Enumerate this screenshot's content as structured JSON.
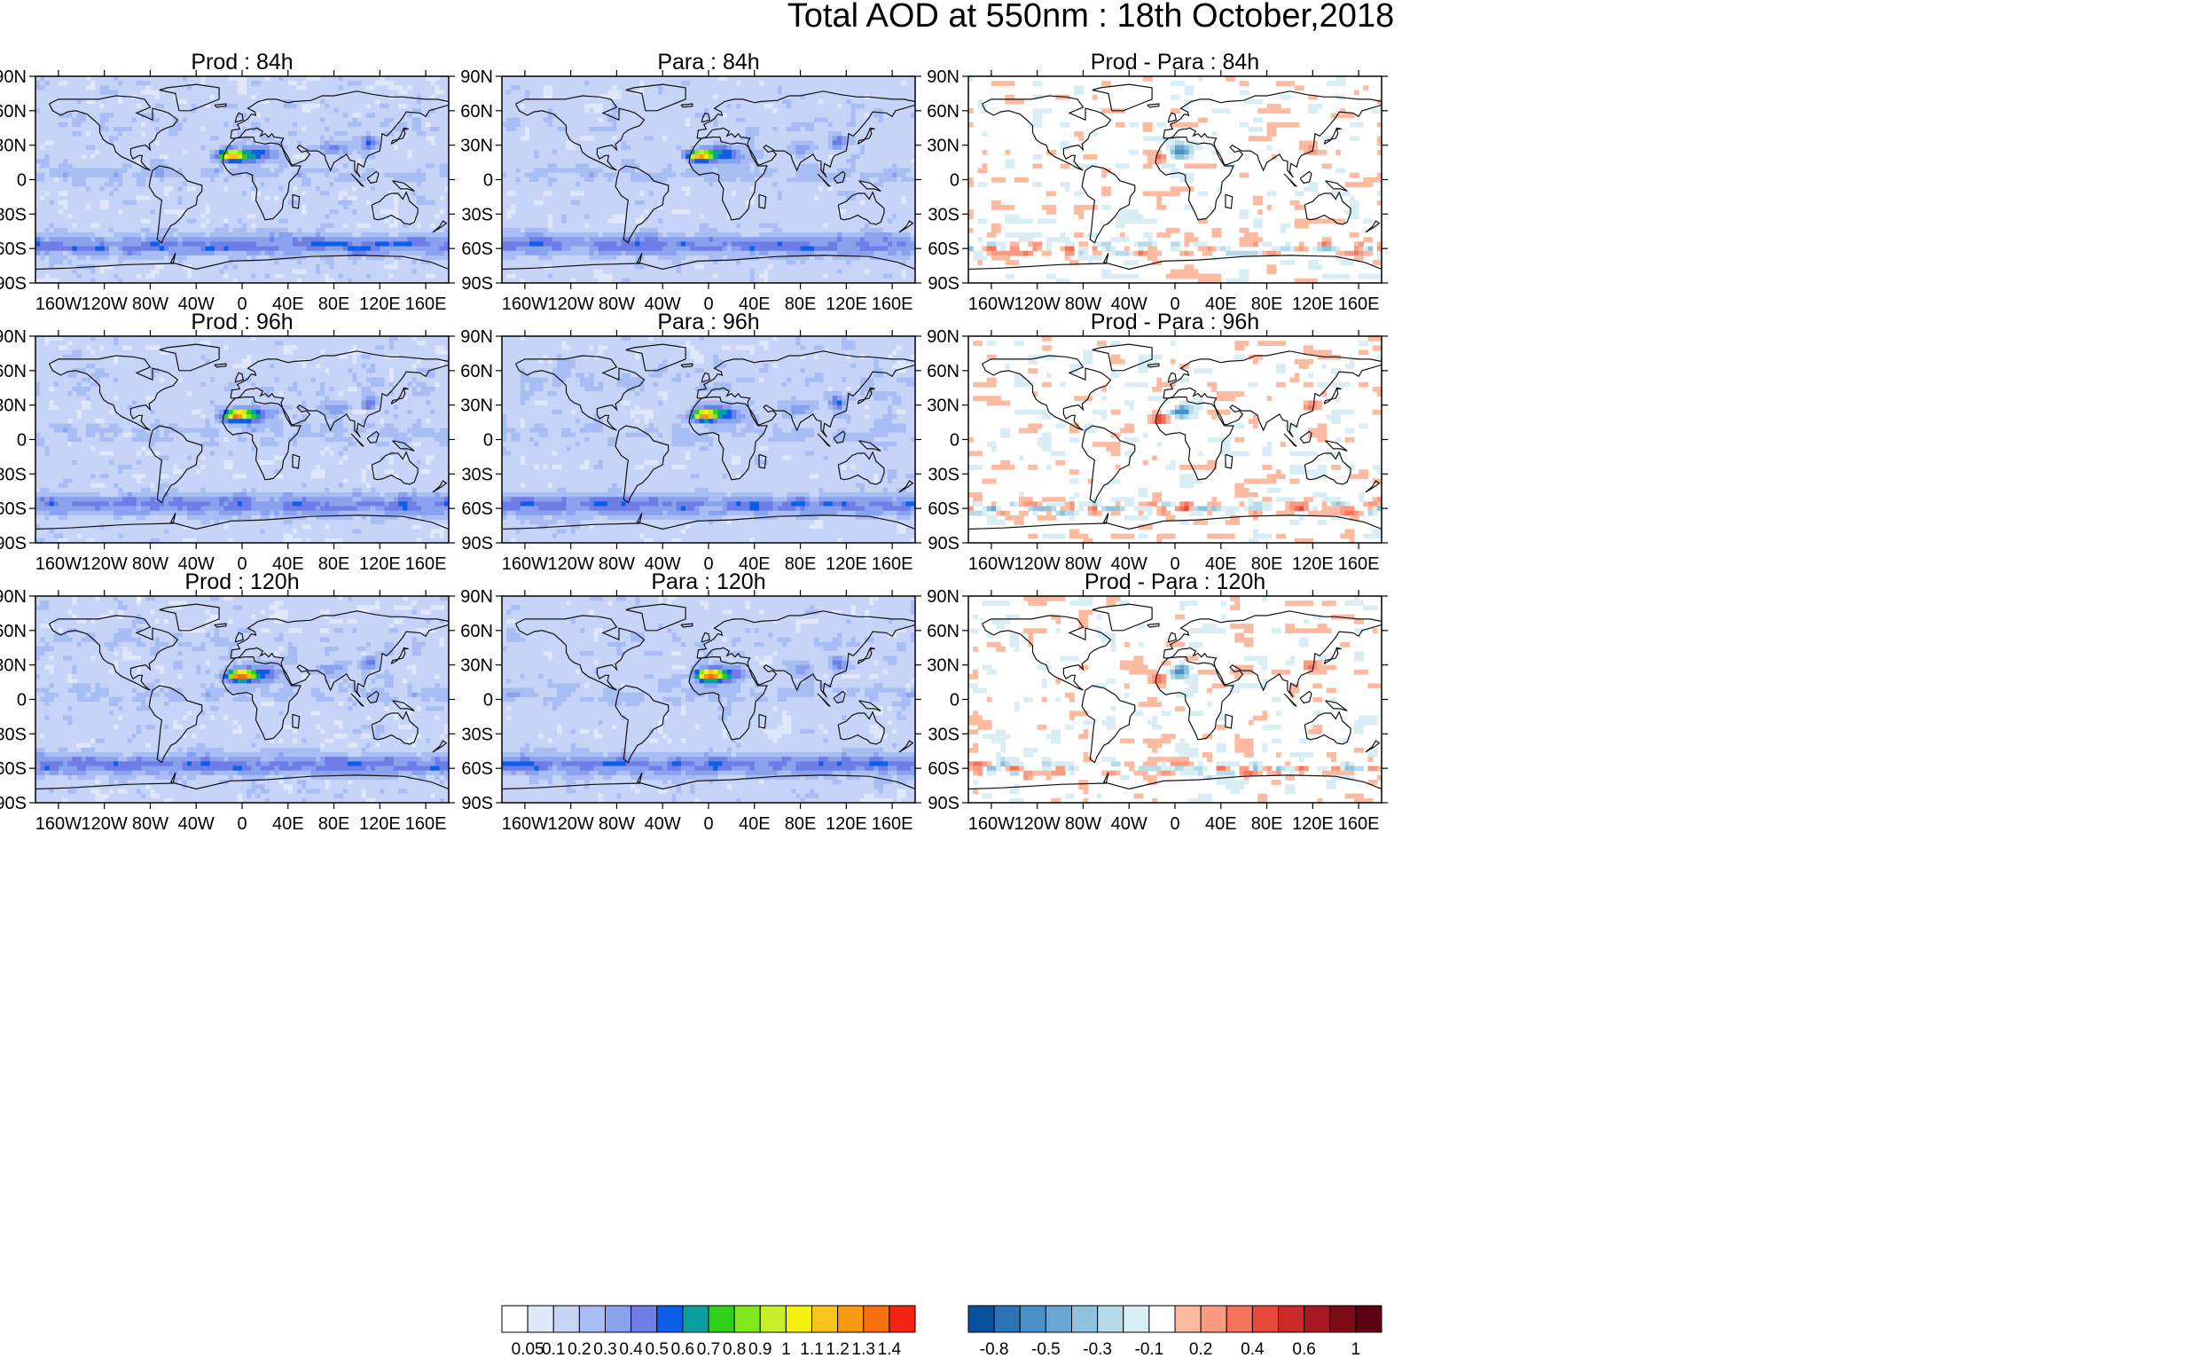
{
  "figure_title": "Total AOD at 550nm : 18th October,2018",
  "colors": {
    "land_outline": "#111111",
    "frame": "#000000",
    "aod_scale": [
      "#ffffff",
      "#dfe7fb",
      "#c6d4f7",
      "#a8bdf3",
      "#8aa2ee",
      "#6f7de7",
      "#0a5ee8",
      "#0a9ea0",
      "#2fd01a",
      "#7fe81a",
      "#c8f02a",
      "#f6f10e",
      "#fac21a",
      "#f99a10",
      "#f7700e",
      "#f52410"
    ],
    "diff_scale": [
      "#08519c",
      "#2b73b6",
      "#4a90c8",
      "#6aa6d4",
      "#8fc2de",
      "#b5dbea",
      "#d9edf5",
      "#ffffff",
      "#fcbba1",
      "#f99a80",
      "#f5735a",
      "#e8493a",
      "#cc2a29",
      "#a81822",
      "#7e0b18",
      "#5c0012"
    ]
  },
  "chart_data": [
    {
      "type": "heatmap",
      "title": "Prod : 84h",
      "variable": "Total AOD at 550nm",
      "lead_time": "84h",
      "xlabel": "",
      "ylabel": "",
      "xticks": [
        "160W",
        "120W",
        "80W",
        "40W",
        "0",
        "40E",
        "80E",
        "120E",
        "160E"
      ],
      "yticks": [
        "90N",
        "60N",
        "30N",
        "0",
        "30S",
        "60S",
        "90S"
      ],
      "xlim": [
        -180,
        180
      ],
      "ylim": [
        -90,
        90
      ],
      "max_region": "Saharan dust plume, AOD 1.0-1.2"
    },
    {
      "type": "heatmap",
      "title": "Para : 84h",
      "variable": "Total AOD at 550nm",
      "lead_time": "84h",
      "xlabel": "",
      "ylabel": "",
      "xticks": [
        "160W",
        "120W",
        "80W",
        "40W",
        "0",
        "40E",
        "80E",
        "120E",
        "160E"
      ],
      "yticks": [
        "90N",
        "60N",
        "30N",
        "0",
        "30S",
        "60S",
        "90S"
      ],
      "xlim": [
        -180,
        180
      ],
      "ylim": [
        -90,
        90
      ],
      "max_region": "Saharan dust plume, AOD 1.0-1.2"
    },
    {
      "type": "heatmap",
      "title": "Prod - Para : 84h",
      "variable": "AOD difference",
      "lead_time": "84h",
      "xlabel": "",
      "ylabel": "",
      "xticks": [
        "160W",
        "120W",
        "80W",
        "40W",
        "0",
        "40E",
        "80E",
        "120E",
        "160E"
      ],
      "yticks": [
        "90N",
        "60N",
        "30N",
        "0",
        "30S",
        "60S",
        "90S"
      ],
      "xlim": [
        -180,
        180
      ],
      "ylim": [
        -90,
        90
      ]
    },
    {
      "type": "heatmap",
      "title": "Prod : 96h",
      "variable": "Total AOD at 550nm",
      "lead_time": "96h",
      "xlabel": "",
      "ylabel": "",
      "xticks": [
        "160W",
        "120W",
        "80W",
        "40W",
        "0",
        "40E",
        "80E",
        "120E",
        "160E"
      ],
      "yticks": [
        "90N",
        "60N",
        "30N",
        "0",
        "30S",
        "60S",
        "90S"
      ],
      "xlim": [
        -180,
        180
      ],
      "ylim": [
        -90,
        90
      ]
    },
    {
      "type": "heatmap",
      "title": "Para : 96h",
      "variable": "Total AOD at 550nm",
      "lead_time": "96h",
      "xlabel": "",
      "ylabel": "",
      "xticks": [
        "160W",
        "120W",
        "80W",
        "40W",
        "0",
        "40E",
        "80E",
        "120E",
        "160E"
      ],
      "yticks": [
        "90N",
        "60N",
        "30N",
        "0",
        "30S",
        "60S",
        "90S"
      ],
      "xlim": [
        -180,
        180
      ],
      "ylim": [
        -90,
        90
      ]
    },
    {
      "type": "heatmap",
      "title": "Prod - Para : 96h",
      "variable": "AOD difference",
      "lead_time": "96h",
      "xlabel": "",
      "ylabel": "",
      "xticks": [
        "160W",
        "120W",
        "80W",
        "40W",
        "0",
        "40E",
        "80E",
        "120E",
        "160E"
      ],
      "yticks": [
        "90N",
        "60N",
        "30N",
        "0",
        "30S",
        "60S",
        "90S"
      ],
      "xlim": [
        -180,
        180
      ],
      "ylim": [
        -90,
        90
      ]
    },
    {
      "type": "heatmap",
      "title": "Prod : 120h",
      "variable": "Total AOD at 550nm",
      "lead_time": "120h",
      "xlabel": "",
      "ylabel": "",
      "xticks": [
        "160W",
        "120W",
        "80W",
        "40W",
        "0",
        "40E",
        "80E",
        "120E",
        "160E"
      ],
      "yticks": [
        "90N",
        "60N",
        "30N",
        "0",
        "30S",
        "60S",
        "90S"
      ],
      "xlim": [
        -180,
        180
      ],
      "ylim": [
        -90,
        90
      ]
    },
    {
      "type": "heatmap",
      "title": "Para : 120h",
      "variable": "Total AOD at 550nm",
      "lead_time": "120h",
      "xlabel": "",
      "ylabel": "",
      "xticks": [
        "160W",
        "120W",
        "80W",
        "40W",
        "0",
        "40E",
        "80E",
        "120E",
        "160E"
      ],
      "yticks": [
        "90N",
        "60N",
        "30N",
        "0",
        "30S",
        "60S",
        "90S"
      ],
      "xlim": [
        -180,
        180
      ],
      "ylim": [
        -90,
        90
      ]
    },
    {
      "type": "heatmap",
      "title": "Prod - Para : 120h",
      "variable": "AOD difference",
      "lead_time": "120h",
      "xlabel": "",
      "ylabel": "",
      "xticks": [
        "160W",
        "120W",
        "80W",
        "40W",
        "0",
        "40E",
        "80E",
        "120E",
        "160E"
      ],
      "yticks": [
        "90N",
        "60N",
        "30N",
        "0",
        "30S",
        "60S",
        "90S"
      ],
      "xlim": [
        -180,
        180
      ],
      "ylim": [
        -90,
        90
      ]
    }
  ],
  "colorbars": {
    "aod": {
      "labels": [
        "0.05",
        "0.1",
        "0.2",
        "0.3",
        "0.4",
        "0.5",
        "0.6",
        "0.7",
        "0.8",
        "0.9",
        "1",
        "1.1",
        "1.2",
        "1.3",
        "1.4"
      ]
    },
    "diff": {
      "labels": [
        "-0.8",
        "-0.5",
        "-0.3",
        "-0.1",
        "0.2",
        "0.4",
        "0.6",
        "1"
      ]
    }
  }
}
